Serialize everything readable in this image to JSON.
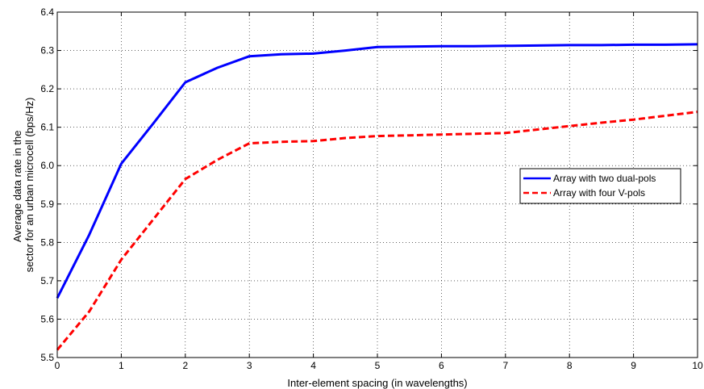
{
  "chart_data": {
    "type": "line",
    "title": "",
    "xlabel": "Inter-element spacing (in wavelengths)",
    "ylabel": [
      "Average data rate in the",
      "sector for an urban microcell (bps/Hz)"
    ],
    "xlim": [
      0,
      10
    ],
    "ylim": [
      5.5,
      6.4
    ],
    "x_ticks": [
      0,
      1,
      2,
      3,
      4,
      5,
      6,
      7,
      8,
      9,
      10
    ],
    "y_ticks": [
      "5.5",
      "5.6",
      "5.7",
      "5.8",
      "5.9",
      "6.0",
      "6.1",
      "6.2",
      "6.3",
      "6.4"
    ],
    "grid": true,
    "legend_position": "right",
    "series": [
      {
        "name": "Array with two dual-pols",
        "color": "#0000ff",
        "style": "solid",
        "x": [
          0,
          0.5,
          1,
          1.5,
          2,
          2.5,
          3,
          3.5,
          4,
          4.5,
          5,
          5.5,
          6,
          6.5,
          7,
          7.5,
          8,
          8.5,
          9,
          9.5,
          10
        ],
        "y": [
          5.655,
          5.82,
          6.005,
          6.11,
          6.217,
          6.255,
          6.285,
          6.29,
          6.292,
          6.3,
          6.309,
          6.31,
          6.311,
          6.311,
          6.312,
          6.313,
          6.314,
          6.314,
          6.315,
          6.315,
          6.316
        ]
      },
      {
        "name": "Array with four V-pols",
        "color": "#ff0000",
        "style": "dashed",
        "x": [
          0,
          0.5,
          1,
          1.5,
          2,
          2.5,
          3,
          3.5,
          4,
          4.5,
          5,
          5.5,
          6,
          6.5,
          7,
          7.5,
          8,
          8.5,
          9,
          9.5,
          10
        ],
        "y": [
          5.52,
          5.62,
          5.755,
          5.86,
          5.965,
          6.015,
          6.058,
          6.062,
          6.064,
          6.072,
          6.077,
          6.079,
          6.081,
          6.083,
          6.085,
          6.094,
          6.103,
          6.112,
          6.12,
          6.13,
          6.14
        ]
      }
    ]
  }
}
